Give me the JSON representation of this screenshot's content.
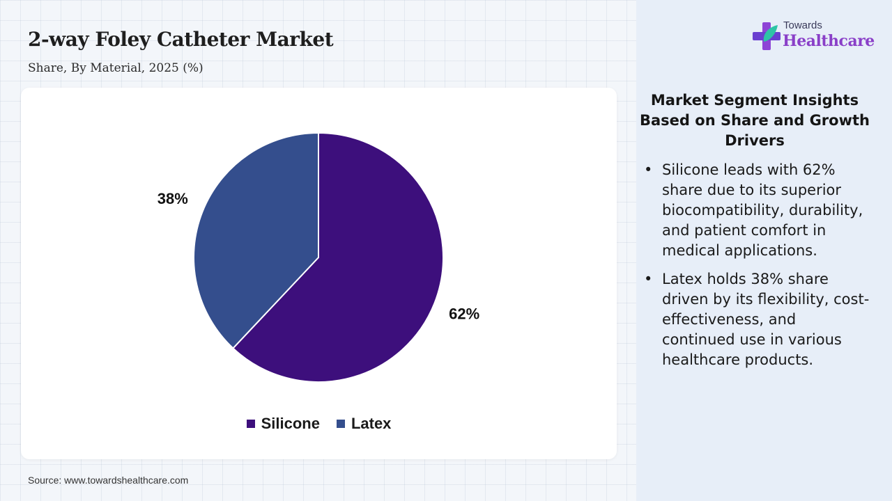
{
  "header": {
    "title": "2-way Foley Catheter Market",
    "subtitle": "Share, By Material, 2025 (%)"
  },
  "chart_data": {
    "type": "pie",
    "categories": [
      "Silicone",
      "Latex"
    ],
    "values": [
      62,
      38
    ],
    "value_labels": [
      "62%",
      "38%"
    ],
    "colors": [
      "#3d0f7c",
      "#344e8d"
    ],
    "legend_position": "bottom",
    "start_angle": "12 o'clock, clockwise"
  },
  "source": "Source: www.towardshealthcare.com",
  "logo": {
    "small_text": "Towards",
    "big_text": "Healthcare",
    "icon": "medical-cross-leaf-icon"
  },
  "insights": {
    "title": "Market Segment Insights Based on Share and Growth Drivers",
    "items": [
      "Silicone leads with 62% share due to its superior biocompatibility, durability, and patient comfort in medical applications.",
      "Latex holds 38% share driven by its flexibility, cost-effectiveness, and continued use in various healthcare products."
    ]
  }
}
